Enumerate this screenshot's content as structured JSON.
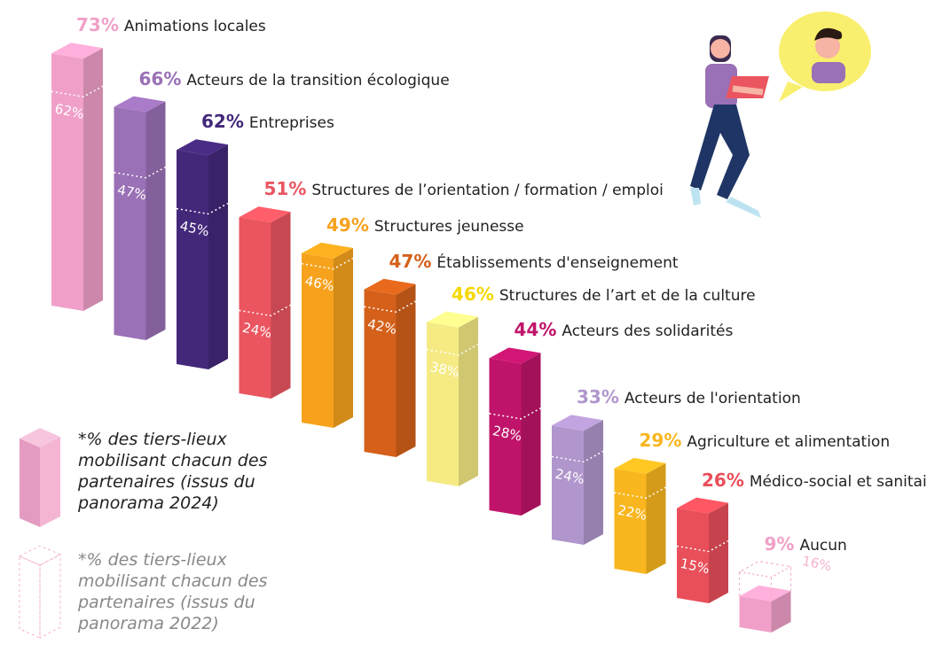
{
  "chart_data": {
    "type": "bar",
    "categories": [
      "Animations locales",
      "Acteurs de la transition écologique",
      "Entreprises",
      "Structures de l’orientation / formation / emploi",
      "Structures jeunesse",
      "Établissements d'enseignement",
      "Structures de l’art et de la culture",
      "Acteurs des solidarités",
      "Acteurs de l'orientation",
      "Agriculture et alimentation",
      "Médico-social et sanitaire",
      "Aucun"
    ],
    "series": [
      {
        "name": "*% des tiers-lieux mobilisant chacun des partenaires (issus du panorama 2024)",
        "values": [
          73,
          66,
          62,
          51,
          49,
          47,
          46,
          44,
          33,
          29,
          26,
          9
        ],
        "value_labels": [
          "73%",
          "66%",
          "62%",
          "51%",
          "49%",
          "47%",
          "46%",
          "44%",
          "33%",
          "29%",
          "26%",
          "9%"
        ],
        "colors": [
          "#f0a0c8",
          "#9a70b6",
          "#43287a",
          "#ea5560",
          "#f7a21d",
          "#d5601a",
          "#f5ea84",
          "#c0146a",
          "#b096cc",
          "#f9b61f",
          "#e94f5a",
          "#f0a0c8"
        ]
      },
      {
        "name": "*% des tiers-lieux mobilisant chacun des partenaires (issus du panorama 2022)",
        "values": [
          62,
          47,
          45,
          24,
          46,
          42,
          38,
          28,
          24,
          22,
          15,
          16
        ],
        "value_labels": [
          "62%",
          "47%",
          "45%",
          "24%",
          "46%",
          "42%",
          "38%",
          "28%",
          "24%",
          "22%",
          "15%",
          "16%"
        ],
        "color": "#f4b3d0"
      }
    ]
  }
}
